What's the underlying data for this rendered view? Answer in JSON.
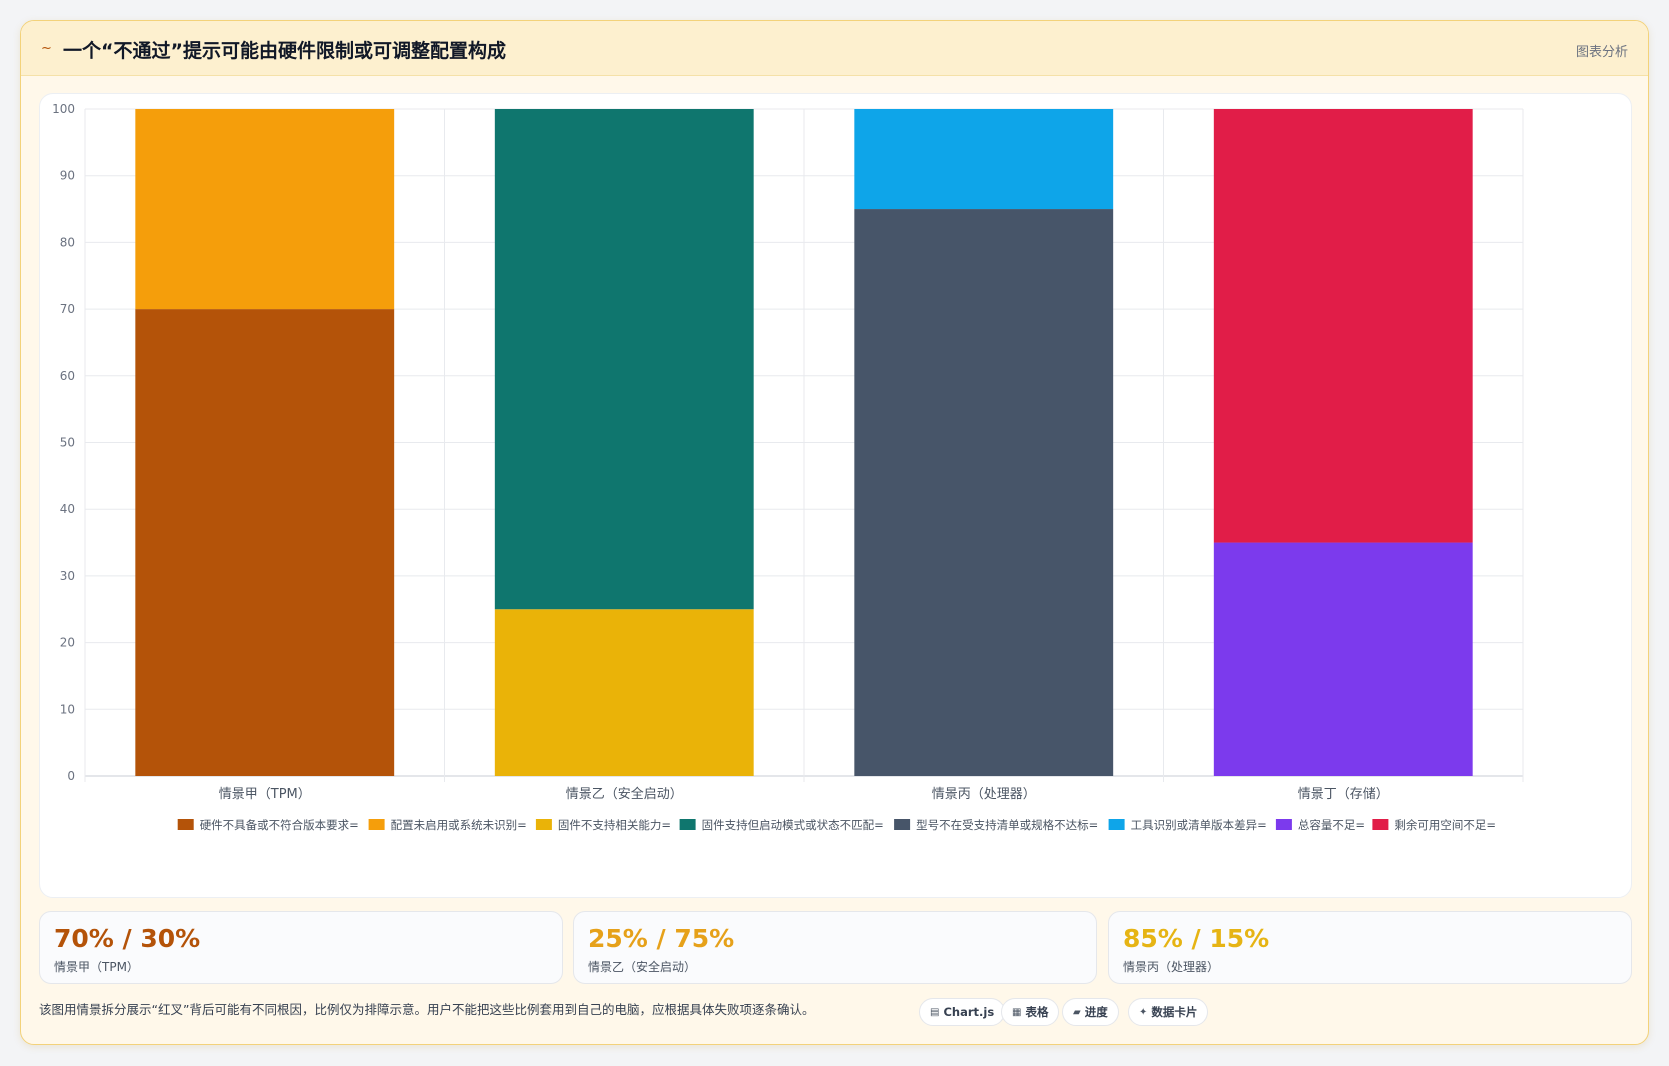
{
  "header": {
    "icon": "~",
    "title": "一个“不通过”提示可能由硬件限制或可调整配置构成",
    "tag": "图表分析"
  },
  "chart_data": {
    "type": "bar",
    "stacked": true,
    "categories": [
      "情景甲（TPM）",
      "情景乙（安全启动）",
      "情景丙（处理器）",
      "情景丁（存储）"
    ],
    "ylim": [
      0,
      100
    ],
    "yticks": [
      0,
      10,
      20,
      30,
      40,
      50,
      60,
      70,
      80,
      90,
      100
    ],
    "grid": true,
    "legend_position": "bottom",
    "series": [
      {
        "name": "硬件不具备或不符合版本要求=",
        "color": "#b45309",
        "values": [
          70,
          0,
          0,
          0
        ]
      },
      {
        "name": "配置未启用或系统未识别=",
        "color": "#f59e0b",
        "values": [
          30,
          0,
          0,
          0
        ]
      },
      {
        "name": "固件不支持相关能力=",
        "color": "#eab308",
        "values": [
          0,
          25,
          0,
          0
        ]
      },
      {
        "name": "固件支持但启动模式或状态不匹配=",
        "color": "#0f766e",
        "values": [
          0,
          75,
          0,
          0
        ]
      },
      {
        "name": "型号不在受支持清单或规格不达标=",
        "color": "#475569",
        "values": [
          0,
          0,
          85,
          0
        ]
      },
      {
        "name": "工具识别或清单版本差异=",
        "color": "#0ea5e9",
        "values": [
          0,
          0,
          15,
          0
        ]
      },
      {
        "name": "总容量不足=",
        "color": "#7c3aed",
        "values": [
          0,
          0,
          0,
          35
        ]
      },
      {
        "name": "剩余可用空间不足=",
        "color": "#e11d48",
        "values": [
          0,
          0,
          0,
          65
        ]
      }
    ]
  },
  "stats": [
    {
      "value": "70% / 30%",
      "label": "情景甲（TPM）",
      "color": "#b45309"
    },
    {
      "value": "25% / 75%",
      "label": "情景乙（安全启动）",
      "color": "#e6a11a"
    },
    {
      "value": "85% / 15%",
      "label": "情景丙（处理器）",
      "color": "#e6b414"
    }
  ],
  "footer": {
    "note": "该图用情景拆分展示“红叉”背后可能有不同根因，比例仅为排障示意。用户不能把这些比例套用到自己的电脑，应根据具体失败项逐条确认。",
    "pills": [
      {
        "icon": "chart-icon",
        "glyph": "▤",
        "label": "Chart.js"
      },
      {
        "icon": "table-icon",
        "glyph": "▦",
        "label": "表格"
      },
      {
        "icon": "progress-icon",
        "glyph": "▰",
        "label": "进度"
      },
      {
        "icon": "sparkle-icon",
        "glyph": "✦",
        "label": "数据卡片"
      }
    ]
  }
}
